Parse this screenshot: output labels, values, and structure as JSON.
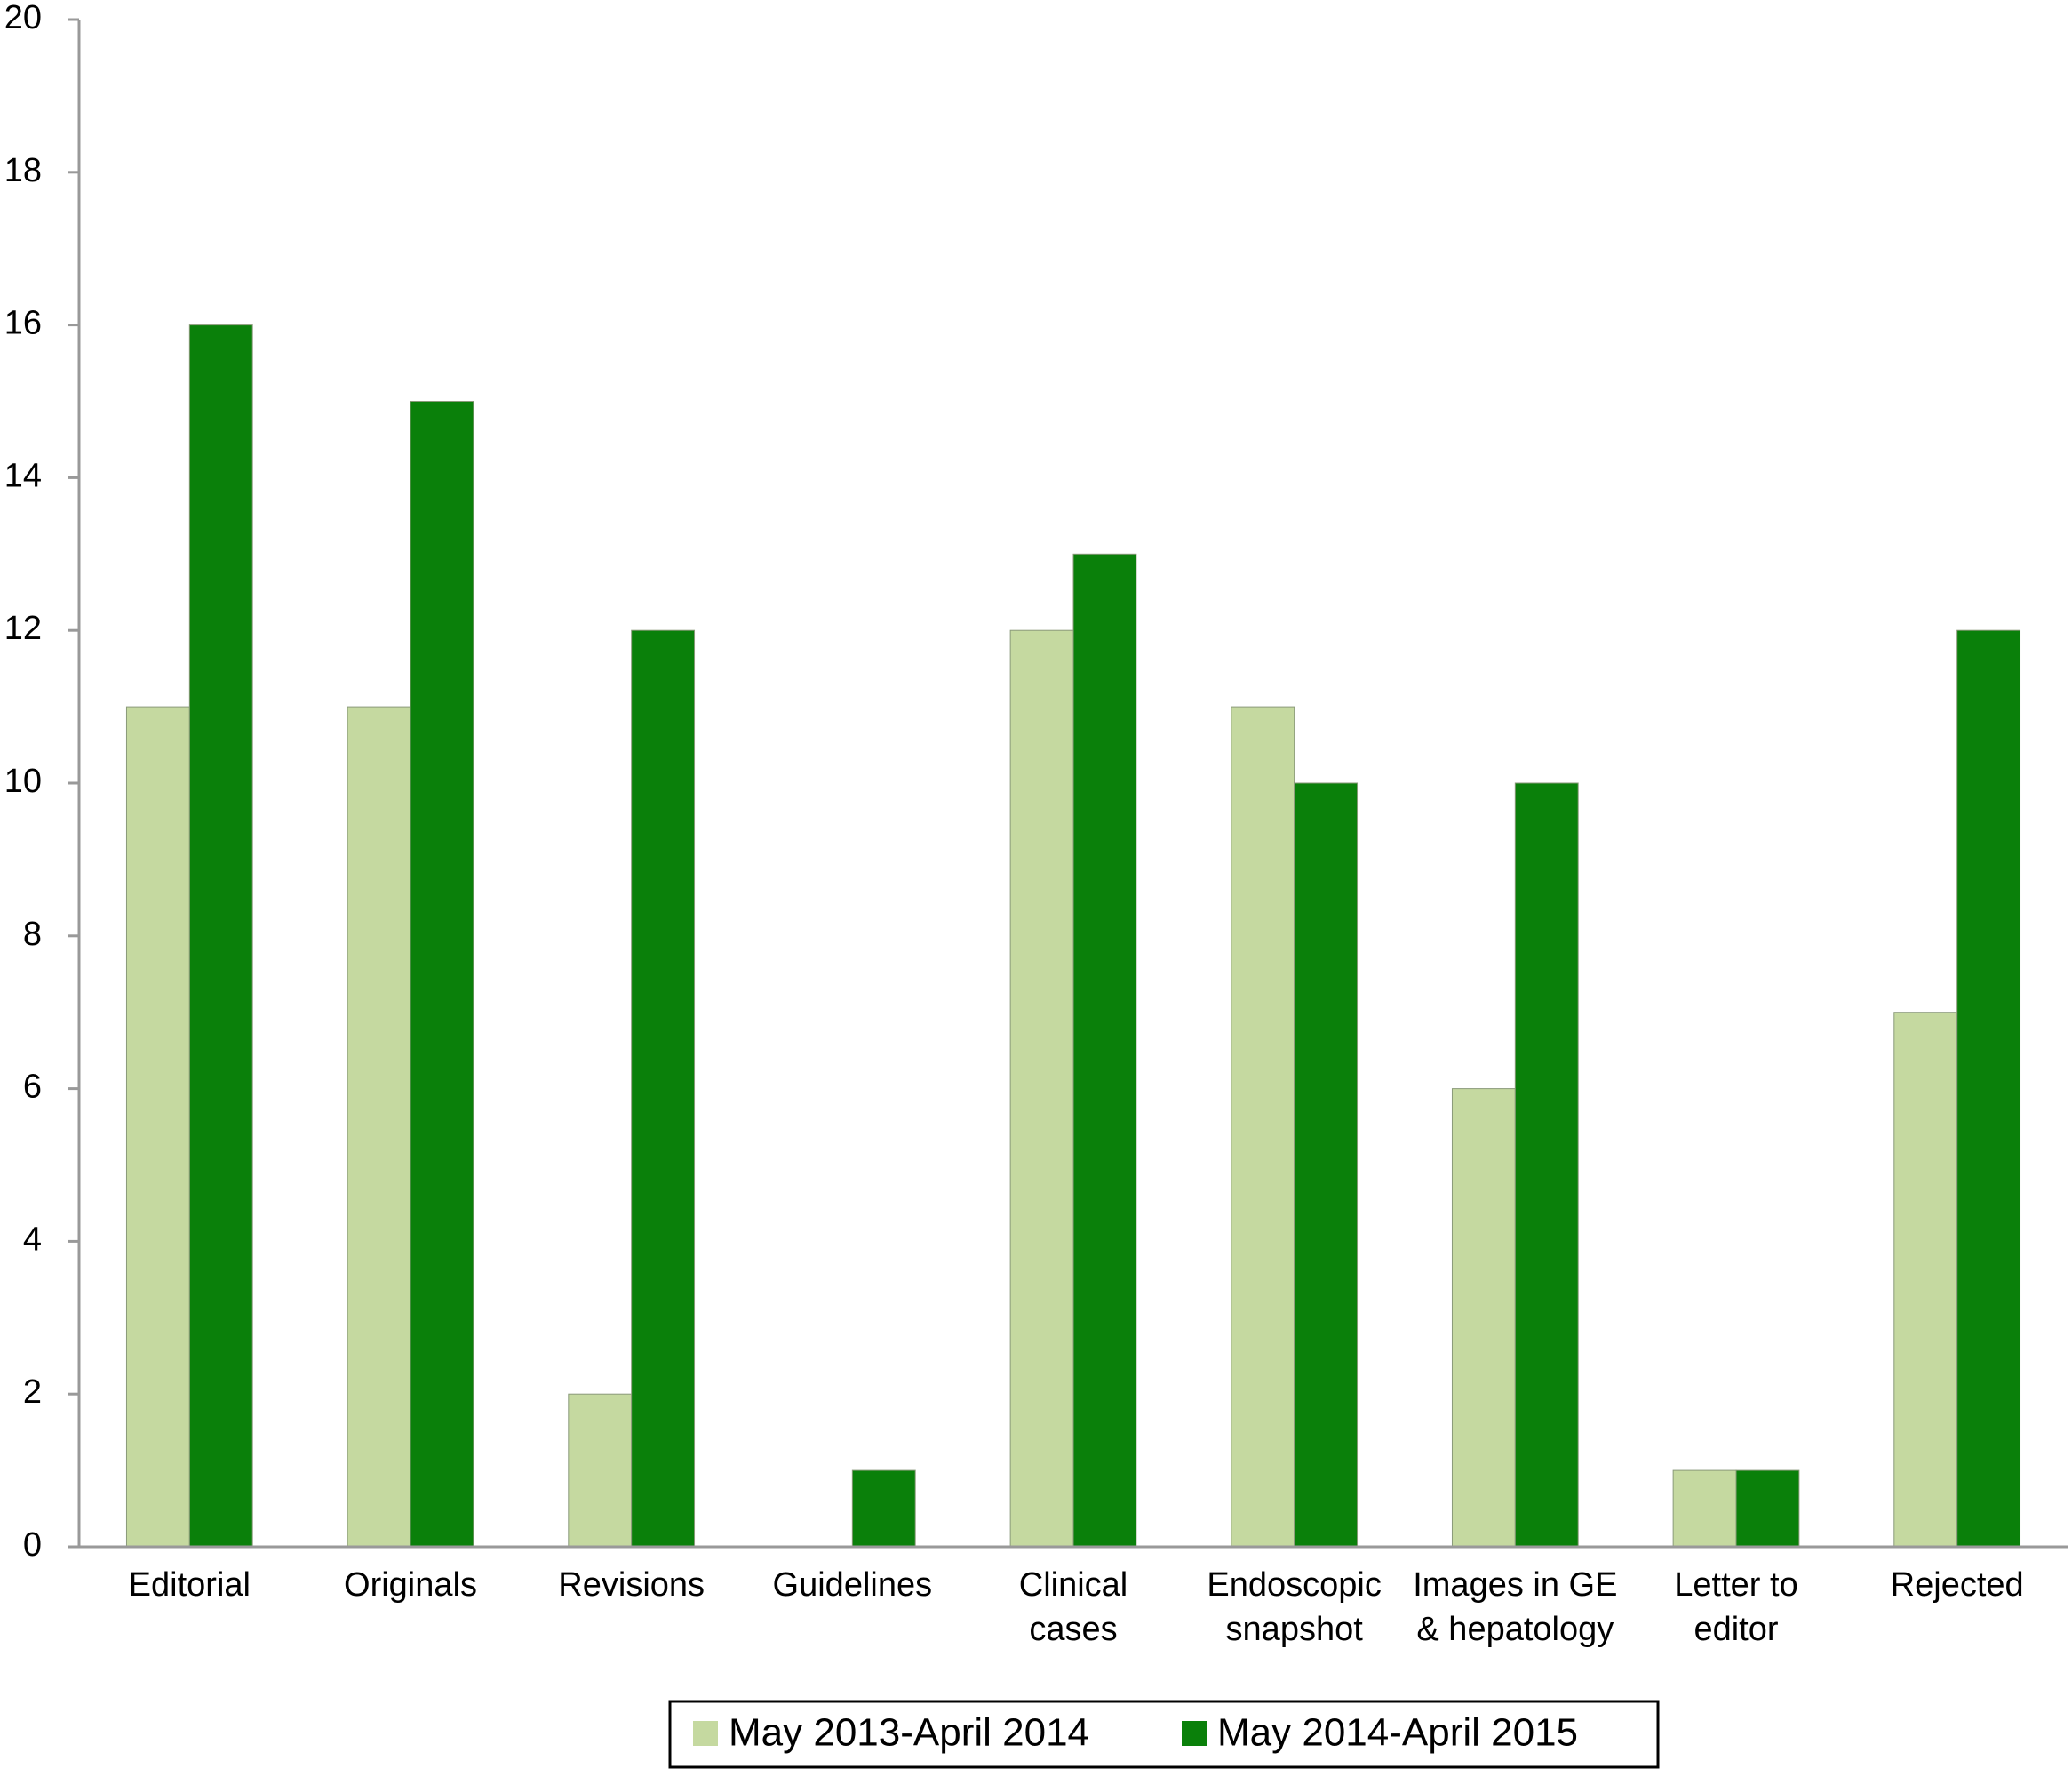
{
  "chart_data": {
    "type": "bar",
    "categories": [
      "Editorial",
      "Originals",
      "Revisions",
      "Guidelines",
      "Clinical\ncases",
      "Endoscopic\nsnapshot",
      "Images in GE\n& hepatology",
      "Letter to\neditor",
      "Rejected"
    ],
    "series": [
      {
        "name": "May 2013-April 2014",
        "color": "#c5d9a0",
        "values": [
          11,
          11,
          2,
          0,
          12,
          11,
          6,
          1,
          7
        ]
      },
      {
        "name": "May 2014-April 2015",
        "color": "#0a800a",
        "values": [
          16,
          15,
          12,
          1,
          13,
          10,
          10,
          1,
          12
        ]
      }
    ],
    "ylim": [
      0,
      20
    ],
    "yticks": [
      0,
      2,
      4,
      6,
      8,
      10,
      12,
      14,
      16,
      18,
      20
    ],
    "legend": "bottom"
  }
}
